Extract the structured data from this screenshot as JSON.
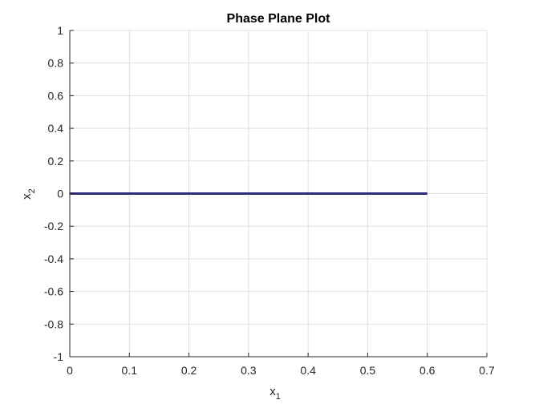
{
  "chart_data": {
    "type": "line",
    "title": "Phase Plane Plot",
    "xlabel": {
      "base": "x",
      "subscript": "1"
    },
    "ylabel": {
      "base": "x",
      "subscript": "2"
    },
    "xlim": [
      0,
      0.7
    ],
    "ylim": [
      -1,
      1
    ],
    "xticks": [
      0,
      0.1,
      0.2,
      0.3,
      0.4,
      0.5,
      0.6,
      0.7
    ],
    "xtick_labels": [
      "0",
      "0.1",
      "0.2",
      "0.3",
      "0.4",
      "0.5",
      "0.6",
      "0.7"
    ],
    "yticks": [
      -1,
      -0.8,
      -0.6,
      -0.4,
      -0.2,
      0,
      0.2,
      0.4,
      0.6,
      0.8,
      1
    ],
    "ytick_labels": [
      "-1",
      "-0.8",
      "-0.6",
      "-0.4",
      "-0.2",
      "0",
      "0.2",
      "0.4",
      "0.6",
      "0.8",
      "1"
    ],
    "grid": true,
    "series": [
      {
        "color": "#2b2b77",
        "x": [
          0,
          0.6
        ],
        "y": [
          0,
          0
        ]
      }
    ]
  }
}
